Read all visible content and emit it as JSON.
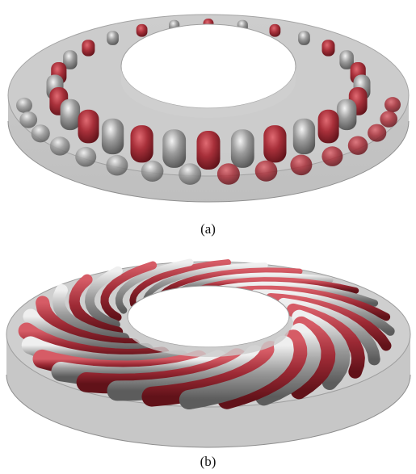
{
  "figure": {
    "panels": [
      {
        "label": "(a)",
        "colors": {
          "positive": "#9a2a33",
          "negative": "#8e8e8e",
          "shell": "#cfcfcf"
        }
      },
      {
        "label": "(b)",
        "colors": {
          "positive": "#9a2a33",
          "negative": "#8e8e8e",
          "shell": "#cfcfcf"
        }
      }
    ]
  }
}
